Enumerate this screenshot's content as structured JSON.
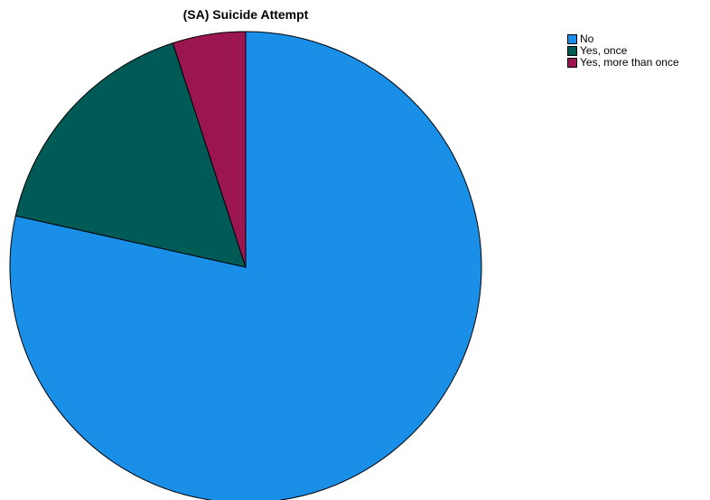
{
  "chart_data": {
    "type": "pie",
    "title": "(SA) Suicide Attempt",
    "categories": [
      "No",
      "Yes, once",
      "Yes, more than once"
    ],
    "values": [
      78.5,
      16.5,
      5.0
    ],
    "value_unit": "percent",
    "colors": [
      "#1a8fe8",
      "#005a55",
      "#9b1650"
    ],
    "legend_position": "top-right",
    "start_angle": "12 o'clock",
    "direction": "clockwise"
  }
}
